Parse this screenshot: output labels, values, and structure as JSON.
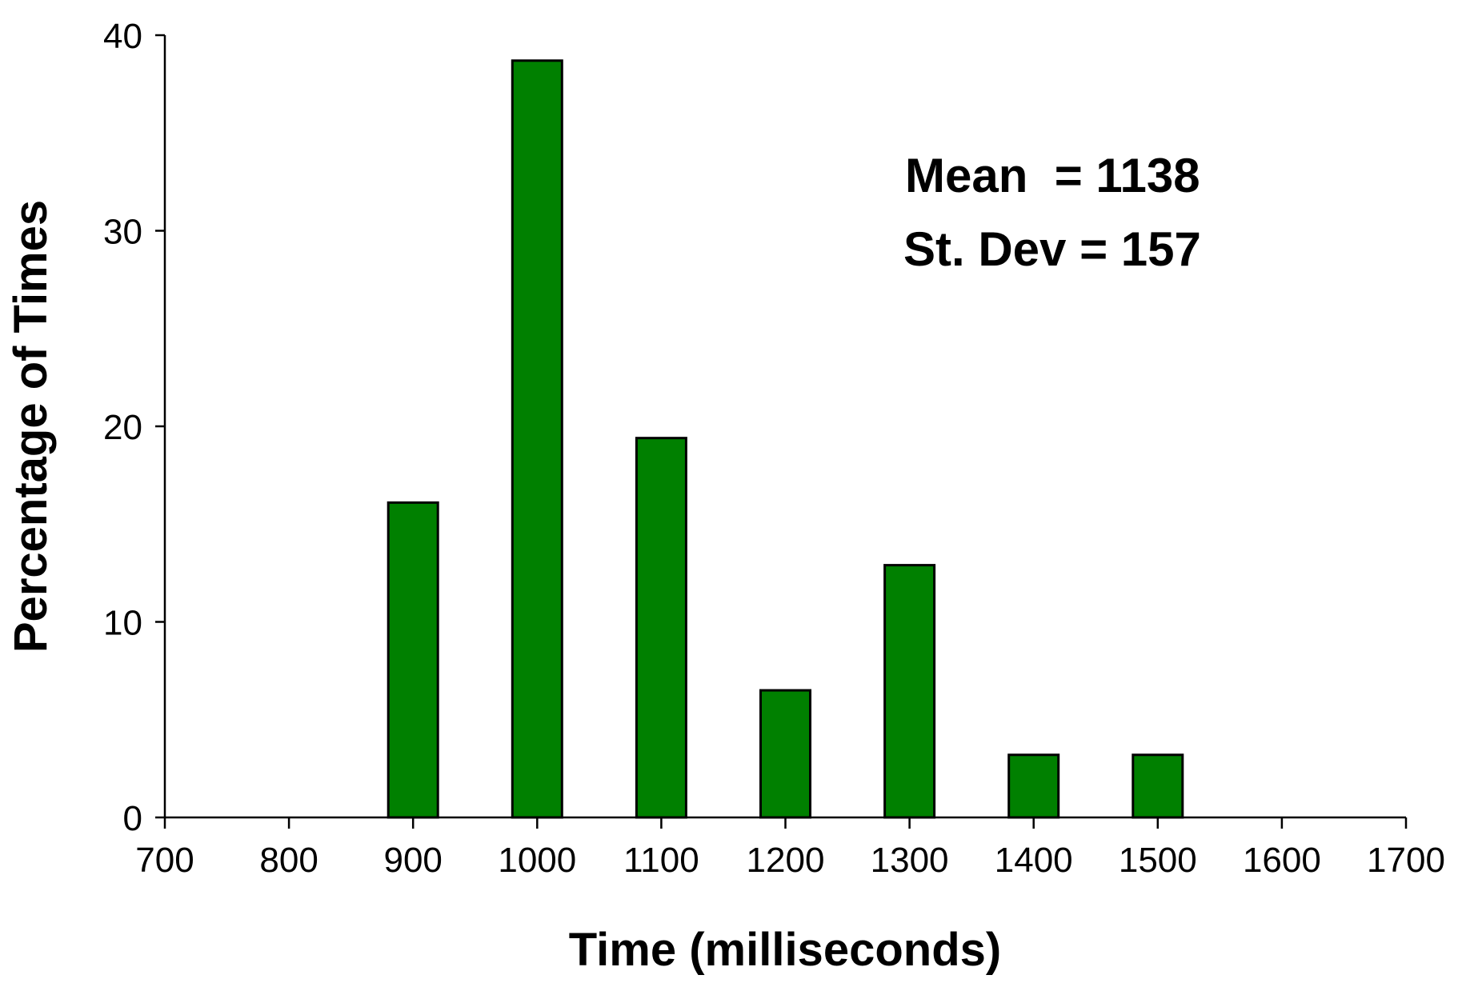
{
  "chart_data": {
    "type": "bar",
    "xlabel": "Time (milliseconds)",
    "ylabel": "Percentage of Times",
    "x_ticks": [
      700,
      800,
      900,
      1000,
      1100,
      1200,
      1300,
      1400,
      1500,
      1600,
      1700
    ],
    "y_ticks": [
      0,
      10,
      20,
      30,
      40
    ],
    "xlim": [
      700,
      1700
    ],
    "ylim": [
      0,
      40
    ],
    "grid": false,
    "bar_color": "#008000",
    "bars": [
      {
        "x": 900,
        "value": 16.1
      },
      {
        "x": 1000,
        "value": 38.7
      },
      {
        "x": 1100,
        "value": 19.4
      },
      {
        "x": 1200,
        "value": 6.5
      },
      {
        "x": 1300,
        "value": 12.9
      },
      {
        "x": 1400,
        "value": 3.2
      },
      {
        "x": 1500,
        "value": 3.2
      }
    ],
    "annotations": {
      "mean": "Mean  = 1138",
      "stdev": "St. Dev = 157"
    }
  }
}
